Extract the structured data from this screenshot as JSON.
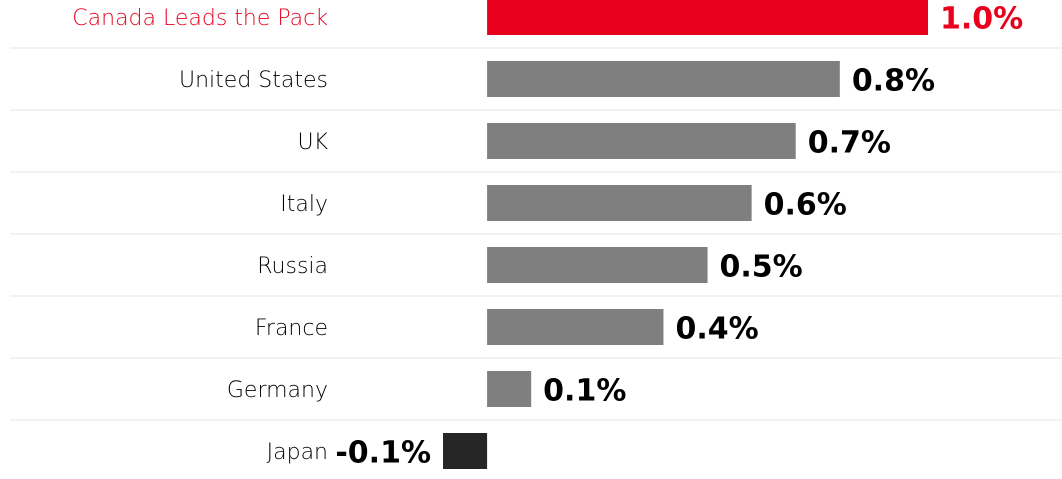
{
  "chart_data": {
    "type": "barh",
    "categories": [
      "Canada Leads the Pack",
      "United States",
      "UK",
      "Italy",
      "Russia",
      "France",
      "Germany",
      "Japan"
    ],
    "values": [
      1.0,
      0.8,
      0.7,
      0.6,
      0.5,
      0.4,
      0.1,
      -0.1
    ],
    "value_labels": [
      "1.0%",
      "0.8%",
      "0.7%",
      "0.6%",
      "0.5%",
      "0.4%",
      "0.1%",
      "-0.1%"
    ],
    "colors": [
      "#e8001c",
      "#7f7f7f",
      "#7f7f7f",
      "#7f7f7f",
      "#7f7f7f",
      "#7f7f7f",
      "#7f7f7f",
      "#262626"
    ],
    "text_colors": [
      "#e8001c",
      "#000000",
      "#000000",
      "#000000",
      "#000000",
      "#000000",
      "#000000",
      "#000000"
    ],
    "xlim": [
      -0.1,
      1.0
    ]
  }
}
